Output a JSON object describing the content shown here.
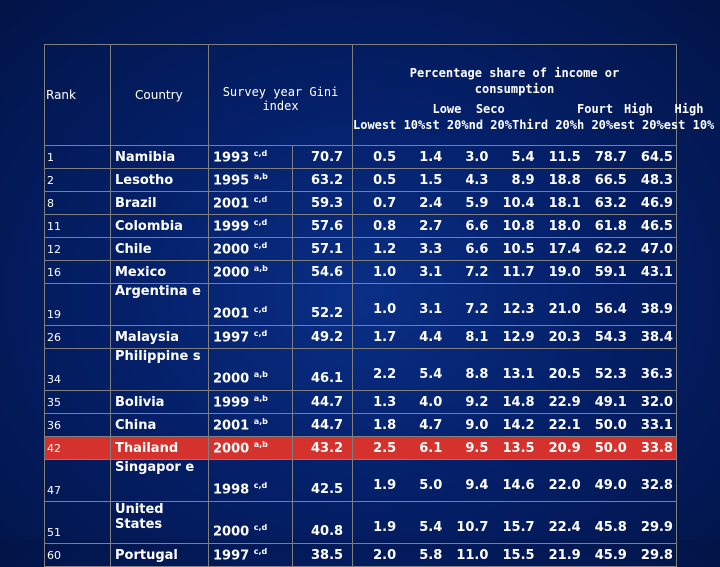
{
  "header": {
    "rank": "Rank",
    "country": "Country",
    "survey_year": "Survey year",
    "gini": "Gini index",
    "pct_title_1": "Percentage share of income or",
    "pct_title_2": "consumption",
    "cols": [
      [
        "",
        "Lowest 10%"
      ],
      [
        "Lowe",
        "st 20%"
      ],
      [
        "Seco",
        "nd 20%"
      ],
      [
        "",
        "Third 20%"
      ],
      [
        "Fourt",
        "h 20%"
      ],
      [
        "High",
        "est 20%"
      ],
      [
        "High",
        "est 10%"
      ]
    ]
  },
  "rows": [
    {
      "rank": "1",
      "country": "Namibia",
      "year": "1993",
      "sup": "c,d",
      "gini": "70.7",
      "shares": [
        "0.5",
        "1.4",
        "3.0",
        "5.4",
        "11.5",
        "78.7",
        "64.5"
      ],
      "tall": false,
      "highlight": false
    },
    {
      "rank": "2",
      "country": "Lesotho",
      "year": "1995",
      "sup": "a,b",
      "gini": "63.2",
      "shares": [
        "0.5",
        "1.5",
        "4.3",
        "8.9",
        "18.8",
        "66.5",
        "48.3"
      ],
      "tall": false,
      "highlight": false
    },
    {
      "rank": "8",
      "country": "Brazil",
      "year": "2001",
      "sup": "c,d",
      "gini": "59.3",
      "shares": [
        "0.7",
        "2.4",
        "5.9",
        "10.4",
        "18.1",
        "63.2",
        "46.9"
      ],
      "tall": false,
      "highlight": false
    },
    {
      "rank": "11",
      "country": "Colombia",
      "year": "1999",
      "sup": "c,d",
      "gini": "57.6",
      "shares": [
        "0.8",
        "2.7",
        "6.6",
        "10.8",
        "18.0",
        "61.8",
        "46.5"
      ],
      "tall": false,
      "highlight": false
    },
    {
      "rank": "12",
      "country": "Chile",
      "year": "2000",
      "sup": "c,d",
      "gini": "57.1",
      "shares": [
        "1.2",
        "3.3",
        "6.6",
        "10.5",
        "17.4",
        "62.2",
        "47.0"
      ],
      "tall": false,
      "highlight": false
    },
    {
      "rank": "16",
      "country": "Mexico",
      "year": "2000",
      "sup": "a,b",
      "gini": "54.6",
      "shares": [
        "1.0",
        "3.1",
        "7.2",
        "11.7",
        "19.0",
        "59.1",
        "43.1"
      ],
      "tall": false,
      "highlight": false
    },
    {
      "rank": "19",
      "country": "Argentina e",
      "year": "2001",
      "sup": "c,d",
      "gini": "52.2",
      "shares": [
        "1.0",
        "3.1",
        "7.2",
        "12.3",
        "21.0",
        "56.4",
        "38.9"
      ],
      "tall": true,
      "highlight": false
    },
    {
      "rank": "26",
      "country": "Malaysia",
      "year": "1997",
      "sup": "c,d",
      "gini": "49.2",
      "shares": [
        "1.7",
        "4.4",
        "8.1",
        "12.9",
        "20.3",
        "54.3",
        "38.4"
      ],
      "tall": false,
      "highlight": false
    },
    {
      "rank": "34",
      "country": "Philippine s",
      "year": "2000",
      "sup": "a,b",
      "gini": "46.1",
      "shares": [
        "2.2",
        "5.4",
        "8.8",
        "13.1",
        "20.5",
        "52.3",
        "36.3"
      ],
      "tall": true,
      "highlight": false
    },
    {
      "rank": "35",
      "country": "Bolivia",
      "year": "1999",
      "sup": "a,b",
      "gini": "44.7",
      "shares": [
        "1.3",
        "4.0",
        "9.2",
        "14.8",
        "22.9",
        "49.1",
        "32.0"
      ],
      "tall": false,
      "highlight": false
    },
    {
      "rank": "36",
      "country": "China",
      "year": "2001",
      "sup": "a,b",
      "gini": "44.7",
      "shares": [
        "1.8",
        "4.7",
        "9.0",
        "14.2",
        "22.1",
        "50.0",
        "33.1"
      ],
      "tall": false,
      "highlight": false
    },
    {
      "rank": "42",
      "country": "Thailand",
      "year": "2000",
      "sup": "a,b",
      "gini": "43.2",
      "shares": [
        "2.5",
        "6.1",
        "9.5",
        "13.5",
        "20.9",
        "50.0",
        "33.8"
      ],
      "tall": false,
      "highlight": true
    },
    {
      "rank": "47",
      "country": "Singapor e",
      "year": "1998",
      "sup": "c,d",
      "gini": "42.5",
      "shares": [
        "1.9",
        "5.0",
        "9.4",
        "14.6",
        "22.0",
        "49.0",
        "32.8"
      ],
      "tall": true,
      "highlight": false
    },
    {
      "rank": "51",
      "country": "United States",
      "year": "2000",
      "sup": "c,d",
      "gini": "40.8",
      "shares": [
        "1.9",
        "5.4",
        "10.7",
        "15.7",
        "22.4",
        "45.8",
        "29.9"
      ],
      "tall": true,
      "highlight": false
    },
    {
      "rank": "60",
      "country": "Portugal",
      "year": "1997",
      "sup": "c,d",
      "gini": "38.5",
      "shares": [
        "2.0",
        "5.8",
        "11.0",
        "15.5",
        "21.9",
        "45.9",
        "29.8"
      ],
      "tall": false,
      "highlight": false
    }
  ]
}
